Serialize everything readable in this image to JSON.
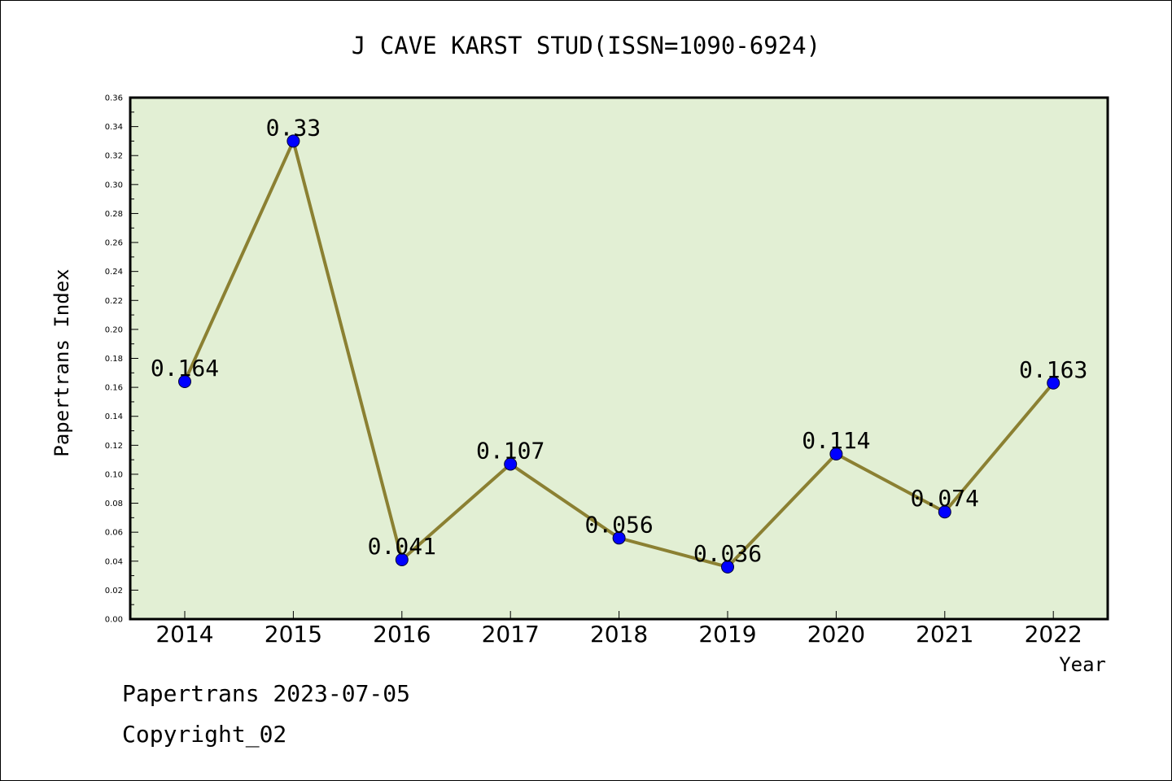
{
  "chart_data": {
    "type": "line",
    "title": "J CAVE KARST STUD(ISSN=1090-6924)",
    "xlabel": "Year",
    "ylabel": "Papertrans Index",
    "categories": [
      "2014",
      "2015",
      "2016",
      "2017",
      "2018",
      "2019",
      "2020",
      "2021",
      "2022"
    ],
    "series": [
      {
        "values": [
          0.164,
          0.33,
          0.041,
          0.107,
          0.056,
          0.036,
          0.114,
          0.074,
          0.163
        ],
        "labels": [
          "0.164",
          "0.33",
          "0.041",
          "0.107",
          "0.056",
          "0.036",
          "0.114",
          "0.074",
          "0.163"
        ]
      }
    ],
    "ylim": [
      0,
      0.36
    ],
    "yticks": [
      "0.00",
      "0.02",
      "0.04",
      "0.06",
      "0.08",
      "0.10",
      "0.12",
      "0.14",
      "0.16",
      "0.18",
      "0.20",
      "0.22",
      "0.24",
      "0.26",
      "0.28",
      "0.30",
      "0.32",
      "0.34",
      "0.36"
    ],
    "grid": false,
    "colors": {
      "plot_background": "#e2efd4",
      "line": "#8b8032",
      "marker": "#0000ff"
    }
  },
  "footer": {
    "date_line": "Papertrans 2023-07-05",
    "copyright_line": "Copyright_02"
  }
}
